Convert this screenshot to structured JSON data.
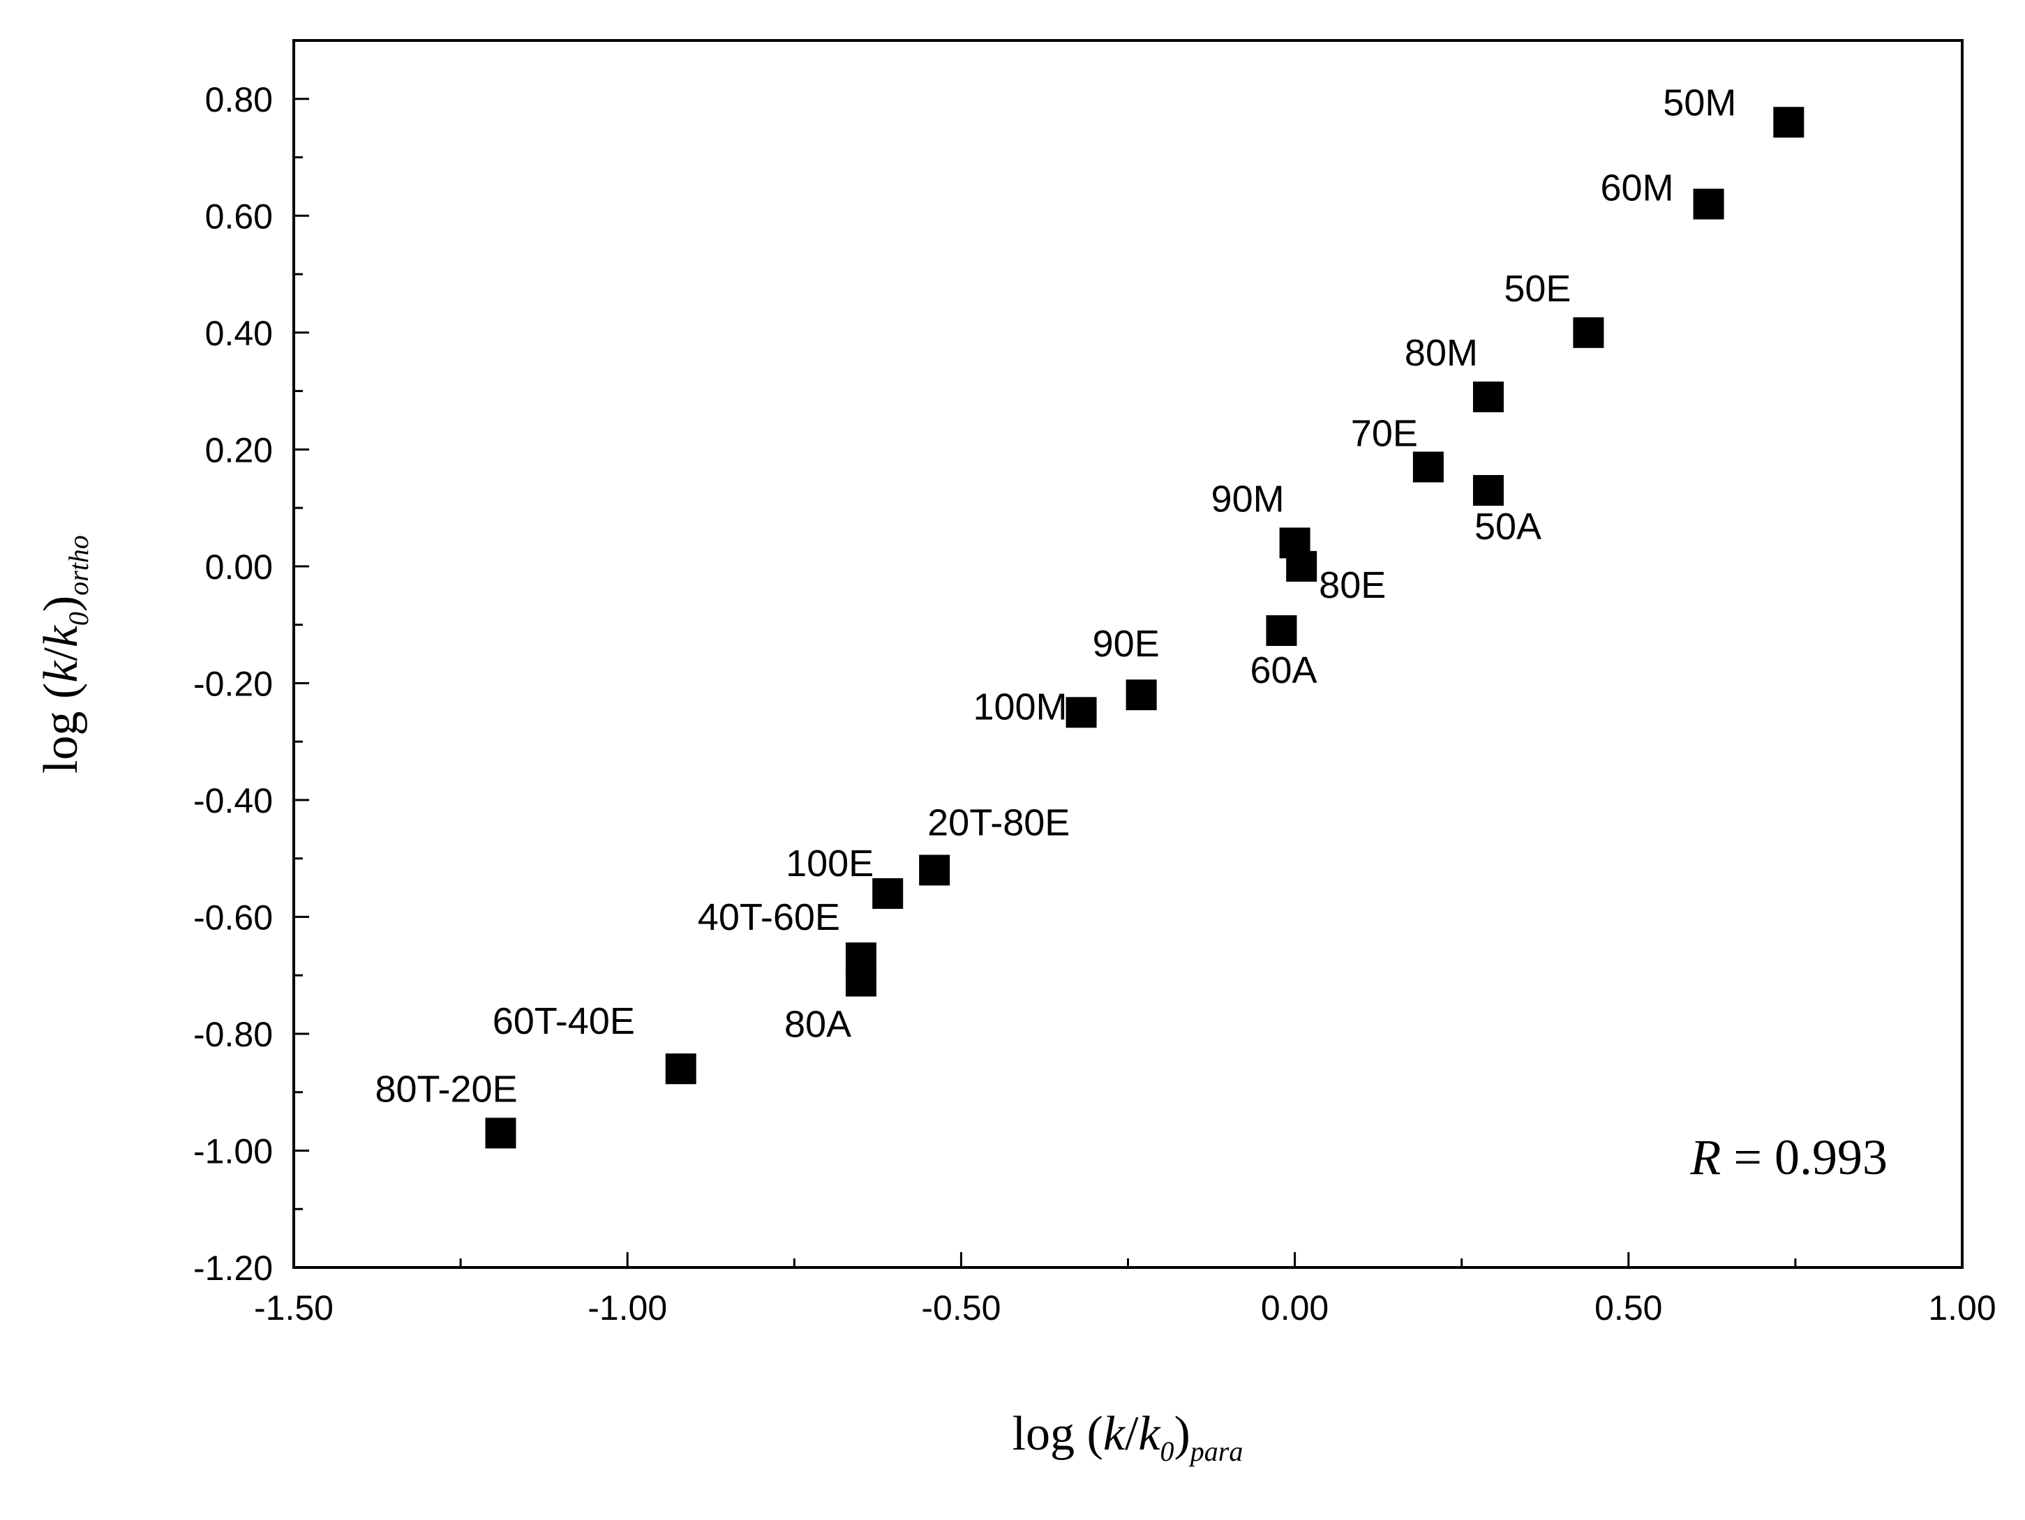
{
  "chart_data": {
    "type": "scatter",
    "title": "",
    "xlabel": {
      "prefix": "log (",
      "k": "k",
      "slash": "/",
      "k0": "k",
      "zero": "0",
      "close": ")",
      "sub": "para"
    },
    "ylabel": {
      "prefix": "log (",
      "k": "k",
      "slash": "/",
      "k0": "k",
      "zero": "0",
      "close": ")",
      "sub": "ortho"
    },
    "xlim": [
      -1.5,
      1.0
    ],
    "ylim": [
      -1.2,
      0.9
    ],
    "xticks": [
      -1.5,
      -1.0,
      -0.5,
      0.0,
      0.5,
      1.0
    ],
    "xtick_labels": [
      "-1.50",
      "-1.00",
      "-0.50",
      "0.00",
      "0.50",
      "1.00"
    ],
    "yticks": [
      -1.2,
      -1.0,
      -0.8,
      -0.6,
      -0.4,
      -0.2,
      0.0,
      0.2,
      0.4,
      0.6,
      0.8
    ],
    "ytick_labels": [
      "-1.20",
      "-1.00",
      "-0.80",
      "-0.60",
      "-0.40",
      "-0.20",
      "0.00",
      "0.20",
      "0.40",
      "0.60",
      "0.80"
    ],
    "grid": false,
    "marker": "square",
    "marker_color": "#000000",
    "points": [
      {
        "label": "50M",
        "x": 0.74,
        "y": 0.76
      },
      {
        "label": "60M",
        "x": 0.62,
        "y": 0.62
      },
      {
        "label": "50E",
        "x": 0.44,
        "y": 0.4
      },
      {
        "label": "80M",
        "x": 0.29,
        "y": 0.29
      },
      {
        "label": "70E",
        "x": 0.2,
        "y": 0.17
      },
      {
        "label": "50A",
        "x": 0.29,
        "y": 0.13
      },
      {
        "label": "90M",
        "x": 0.0,
        "y": 0.04
      },
      {
        "label": "80E",
        "x": 0.01,
        "y": 0.0
      },
      {
        "label": "60A",
        "x": -0.02,
        "y": -0.11
      },
      {
        "label": "90E",
        "x": -0.23,
        "y": -0.22
      },
      {
        "label": "100M",
        "x": -0.32,
        "y": -0.25
      },
      {
        "label": "20T-80E",
        "x": -0.54,
        "y": -0.52
      },
      {
        "label": "100E",
        "x": -0.61,
        "y": -0.56
      },
      {
        "label": "40T-60E",
        "x": -0.65,
        "y": -0.67
      },
      {
        "label": "80A",
        "x": -0.65,
        "y": -0.71
      },
      {
        "label": "60T-40E",
        "x": -0.92,
        "y": -0.86
      },
      {
        "label": "80T-20E",
        "x": -1.19,
        "y": -0.97
      }
    ],
    "annotation": {
      "r_symbol": "R",
      "eq": " = ",
      "r_value": "0.993",
      "position": "bottom-right"
    }
  }
}
